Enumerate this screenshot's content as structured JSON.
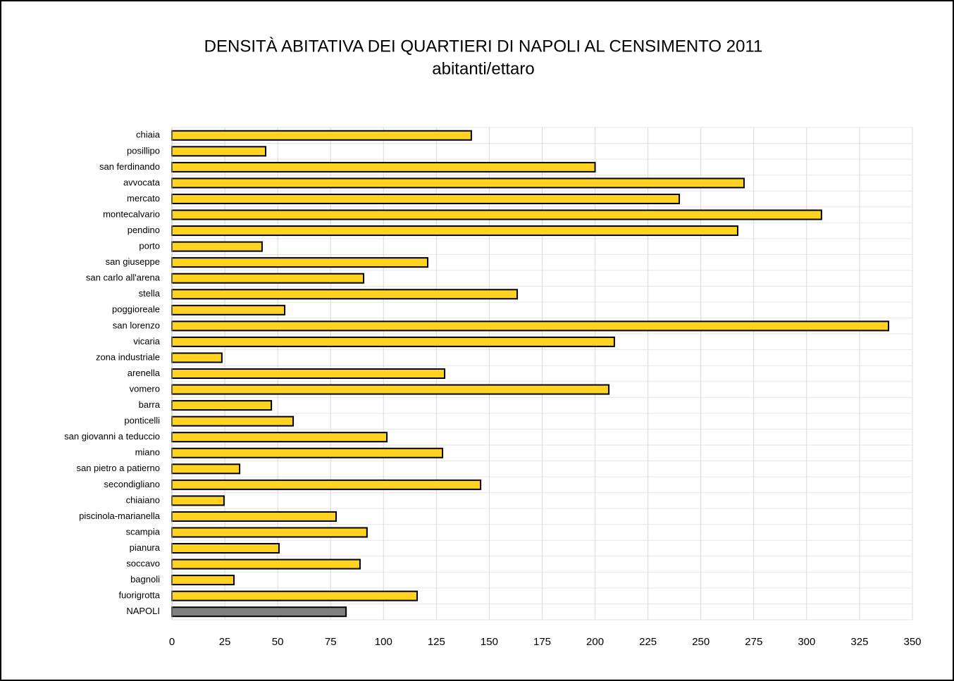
{
  "chart_data": {
    "type": "bar",
    "orientation": "horizontal",
    "title": "DENSITÀ ABITATIVA DEI QUARTIERI DI NAPOLI AL CENSIMENTO 2011",
    "subtitle": "abitanti/ettaro",
    "categories": [
      "chiaia",
      "posillipo",
      "san ferdinando",
      "avvocata",
      "mercato",
      "montecalvario",
      "pendino",
      "porto",
      "san giuseppe",
      "san carlo all'arena",
      "stella",
      "poggioreale",
      "san lorenzo",
      "vicaria",
      "zona industriale",
      "arenella",
      "vomero",
      "barra",
      "ponticelli",
      "san giovanni a teduccio",
      "miano",
      "san pietro a patierno",
      "secondigliano",
      "chiaiano",
      "piscinola-marianella",
      "scampia",
      "pianura",
      "soccavo",
      "bagnoli",
      "fuorigrotta",
      "NAPOLI"
    ],
    "values": [
      141.5,
      44.3,
      200,
      270.4,
      239.8,
      307,
      267.4,
      42.6,
      120.9,
      90.6,
      163.2,
      53.3,
      338.7,
      209.1,
      23.6,
      128.9,
      206.5,
      47,
      57.3,
      101.6,
      127.9,
      32,
      145.9,
      24.6,
      77.6,
      92.2,
      50.6,
      88.9,
      29.3,
      115.9,
      82.3
    ],
    "colors": [
      "#ffd320",
      "#ffd320",
      "#ffd320",
      "#ffd320",
      "#ffd320",
      "#ffd320",
      "#ffd320",
      "#ffd320",
      "#ffd320",
      "#ffd320",
      "#ffd320",
      "#ffd320",
      "#ffd320",
      "#ffd320",
      "#ffd320",
      "#ffd320",
      "#ffd320",
      "#ffd320",
      "#ffd320",
      "#ffd320",
      "#ffd320",
      "#ffd320",
      "#ffd320",
      "#ffd320",
      "#ffd320",
      "#ffd320",
      "#ffd320",
      "#ffd320",
      "#ffd320",
      "#ffd320",
      "#808080"
    ],
    "xlim": [
      0,
      350
    ],
    "xticks": [
      0,
      25,
      50,
      75,
      100,
      125,
      150,
      175,
      200,
      225,
      250,
      275,
      300,
      325,
      350
    ],
    "grid": true
  }
}
